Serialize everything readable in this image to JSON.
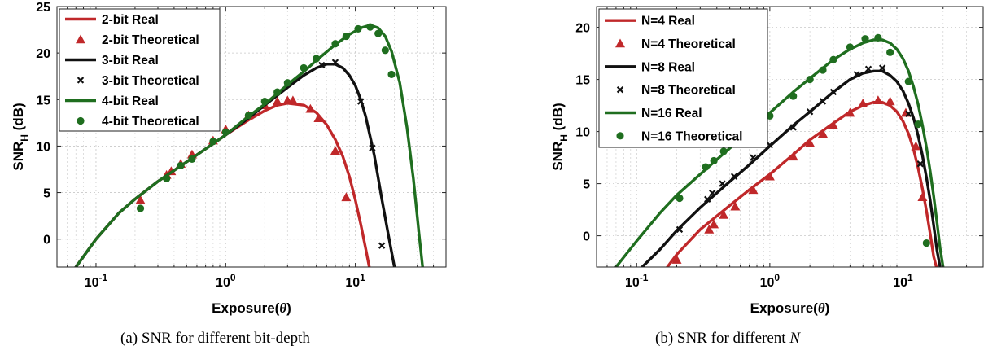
{
  "captions": {
    "a": "(a) SNR for different bit-depth",
    "b_prefix": "(b) SNR for different ",
    "b_math": "N"
  },
  "chart_data": [
    {
      "id": "a",
      "type": "line",
      "xscale": "log",
      "xlim": [
        0.05,
        50
      ],
      "ylim": [
        -3,
        25
      ],
      "yticks": [
        0,
        5,
        10,
        15,
        20,
        25
      ],
      "ytick_labels": [
        "0",
        "5",
        "10",
        "15",
        "20",
        "25"
      ],
      "xticks": [
        0.1,
        1,
        10
      ],
      "xtick_labels": [
        {
          "base": "10",
          "exp": "-1"
        },
        {
          "base": "10",
          "exp": "0"
        },
        {
          "base": "10",
          "exp": "1"
        }
      ],
      "xlabel": {
        "pre": "Exposure(",
        "sym": "θ",
        "post": ")"
      },
      "ylabel": {
        "main": "SNR",
        "sub": "H",
        "unit": " (dB)"
      },
      "grid": true,
      "legend_position": "top-left",
      "series": [
        {
          "name": "2-bit Real",
          "kind": "line",
          "color": "#c0282a",
          "x": [
            0.07,
            0.1,
            0.15,
            0.2,
            0.3,
            0.5,
            0.7,
            1,
            1.5,
            2,
            2.5,
            3,
            4,
            5,
            6,
            7,
            8,
            9,
            10,
            11,
            12,
            12.8
          ],
          "y": [
            -3,
            0,
            2.8,
            4.3,
            6.2,
            8.3,
            9.7,
            11.2,
            12.8,
            13.8,
            14.4,
            14.6,
            14.4,
            13.6,
            12.3,
            10.7,
            8.9,
            6.7,
            4.2,
            1.6,
            -1.0,
            -3
          ]
        },
        {
          "name": "2-bit Theoretical",
          "kind": "triangle",
          "color": "#c0282a",
          "x": [
            0.22,
            0.35,
            0.38,
            0.45,
            0.55,
            0.8,
            1.0,
            1.5,
            2.0,
            2.5,
            3.0,
            3.3,
            4.5,
            5.2,
            7.0,
            8.5
          ],
          "y": [
            4.2,
            6.9,
            7.3,
            8.1,
            9.1,
            10.6,
            11.8,
            13.3,
            14.4,
            14.8,
            14.9,
            14.9,
            14.0,
            13.0,
            9.5,
            4.5
          ]
        },
        {
          "name": "3-bit Real",
          "kind": "line",
          "color": "#111111",
          "x": [
            0.07,
            0.1,
            0.15,
            0.2,
            0.3,
            0.5,
            0.7,
            1,
            1.5,
            2,
            3,
            4,
            5,
            6,
            7,
            8,
            9,
            10,
            11,
            12,
            14,
            16,
            18,
            20
          ],
          "y": [
            -3,
            0,
            2.8,
            4.3,
            6.2,
            8.3,
            9.7,
            11.2,
            13.0,
            14.4,
            16.3,
            17.6,
            18.4,
            18.8,
            18.8,
            18.4,
            17.6,
            16.5,
            15.0,
            13.2,
            9.0,
            4.3,
            0.4,
            -3
          ]
        },
        {
          "name": "3-bit Theoretical",
          "kind": "x",
          "color": "#111111",
          "x": [
            5.5,
            7.0,
            11.0,
            13.5,
            16.0
          ],
          "y": [
            18.7,
            19.0,
            14.8,
            9.8,
            -0.7
          ]
        },
        {
          "name": "4-bit Real",
          "kind": "line",
          "color": "#1f6e1f",
          "x": [
            0.07,
            0.1,
            0.15,
            0.2,
            0.3,
            0.5,
            0.7,
            1,
            1.5,
            2,
            3,
            4,
            5,
            7,
            9,
            11,
            13,
            15,
            17,
            19,
            22,
            25,
            28,
            31,
            33
          ],
          "y": [
            -3,
            0,
            2.8,
            4.3,
            6.2,
            8.3,
            9.7,
            11.2,
            13.2,
            14.5,
            16.6,
            18.0,
            19.2,
            20.9,
            22.0,
            22.7,
            23.0,
            22.7,
            21.8,
            20.2,
            16.8,
            12.0,
            6.5,
            0.5,
            -3
          ]
        },
        {
          "name": "4-bit Theoretical",
          "kind": "circle",
          "color": "#1f6e1f",
          "x": [
            0.22,
            0.35,
            0.45,
            0.55,
            0.8,
            1.0,
            1.5,
            2.0,
            2.5,
            3.0,
            4.0,
            5.0,
            7.0,
            8.5,
            10.5,
            13.0,
            15.0,
            17.0,
            19.0
          ],
          "y": [
            3.3,
            6.5,
            7.9,
            8.6,
            10.5,
            11.5,
            13.3,
            14.8,
            15.8,
            16.8,
            18.4,
            19.4,
            21.0,
            21.8,
            22.6,
            22.8,
            22.1,
            20.3,
            17.7
          ]
        }
      ]
    },
    {
      "id": "b",
      "type": "line",
      "xscale": "log",
      "xlim": [
        0.05,
        40
      ],
      "ylim": [
        -3,
        22
      ],
      "yticks": [
        0,
        5,
        10,
        15,
        20
      ],
      "ytick_labels": [
        "0",
        "5",
        "10",
        "15",
        "20"
      ],
      "xticks": [
        0.1,
        1,
        10
      ],
      "xtick_labels": [
        {
          "base": "10",
          "exp": "-1"
        },
        {
          "base": "10",
          "exp": "0"
        },
        {
          "base": "10",
          "exp": "1"
        }
      ],
      "xlabel": {
        "pre": "Exposure(",
        "sym": "θ",
        "post": ")"
      },
      "ylabel": {
        "main": "SNR",
        "sub": "H",
        "unit": " (dB)"
      },
      "grid": true,
      "legend_position": "top-left",
      "series": [
        {
          "name": "N=4 Real",
          "kind": "line",
          "color": "#c0282a",
          "x": [
            0.17,
            0.2,
            0.3,
            0.5,
            0.7,
            1,
            1.5,
            2,
            3,
            4,
            5,
            6,
            7,
            8,
            9,
            10,
            11,
            12,
            13,
            14,
            15,
            16,
            17,
            17.8
          ],
          "y": [
            -3,
            -1.8,
            0.6,
            2.9,
            4.4,
            5.9,
            7.8,
            9.2,
            10.8,
            11.9,
            12.5,
            12.8,
            12.8,
            12.5,
            11.9,
            11.0,
            9.8,
            8.3,
            6.5,
            4.5,
            2.4,
            0.2,
            -2.0,
            -3
          ]
        },
        {
          "name": "N=4 Theoretical",
          "kind": "triangle",
          "color": "#c0282a",
          "x": [
            0.2,
            0.35,
            0.38,
            0.45,
            0.55,
            0.75,
            1.0,
            1.5,
            2.0,
            2.5,
            3.0,
            4.0,
            5.0,
            6.5,
            8.0,
            10.5,
            12.5,
            14.0
          ],
          "y": [
            -2.3,
            0.6,
            1.1,
            2.0,
            2.8,
            4.4,
            5.7,
            7.6,
            8.9,
            9.8,
            10.6,
            11.8,
            12.7,
            13.0,
            12.9,
            11.8,
            8.6,
            3.7
          ]
        },
        {
          "name": "N=8 Real",
          "kind": "line",
          "color": "#111111",
          "x": [
            0.11,
            0.15,
            0.2,
            0.3,
            0.5,
            0.7,
            1,
            1.5,
            2,
            3,
            4,
            5,
            6,
            7,
            8,
            9,
            10,
            11,
            12,
            13,
            14,
            15,
            16,
            17,
            18,
            19
          ],
          "y": [
            -3,
            -1.3,
            0.5,
            2.7,
            5.2,
            6.8,
            8.6,
            10.6,
            11.9,
            13.8,
            15.0,
            15.6,
            15.8,
            15.8,
            15.4,
            14.8,
            13.9,
            12.7,
            11.3,
            9.6,
            7.7,
            5.6,
            3.4,
            1.0,
            -1.4,
            -3
          ]
        },
        {
          "name": "N=8 Theoretical",
          "kind": "x",
          "color": "#111111",
          "x": [
            0.21,
            0.34,
            0.37,
            0.44,
            0.54,
            0.75,
            1.0,
            1.5,
            2.0,
            2.5,
            3.0,
            4.5,
            5.5,
            7.0,
            11.0,
            13.5
          ],
          "y": [
            0.6,
            3.5,
            4.1,
            5.0,
            5.7,
            7.5,
            8.7,
            10.4,
            11.9,
            12.9,
            13.8,
            15.5,
            16.0,
            16.1,
            11.7,
            6.9
          ]
        },
        {
          "name": "N=16 Real",
          "kind": "line",
          "color": "#1f6e1f",
          "x": [
            0.07,
            0.1,
            0.15,
            0.2,
            0.3,
            0.5,
            0.7,
            1,
            1.5,
            2,
            3,
            4,
            5,
            6,
            7,
            8,
            9,
            10,
            11,
            12,
            13,
            14,
            15,
            16,
            17,
            18,
            19,
            20
          ],
          "y": [
            -3,
            -0.5,
            2.2,
            3.9,
            5.9,
            8.4,
            10.0,
            11.8,
            13.8,
            15.1,
            16.9,
            17.9,
            18.5,
            18.8,
            18.8,
            18.5,
            17.9,
            17.0,
            15.8,
            14.3,
            12.6,
            10.6,
            8.5,
            6.2,
            3.8,
            1.3,
            -1.2,
            -3
          ]
        },
        {
          "name": "N=16 Theoretical",
          "kind": "circle",
          "color": "#1f6e1f",
          "x": [
            0.21,
            0.33,
            0.38,
            0.45,
            0.55,
            0.75,
            1.0,
            1.5,
            2.0,
            2.5,
            3.0,
            4.0,
            5.2,
            6.5,
            8.0,
            11.0,
            13.0,
            15.0
          ],
          "y": [
            3.6,
            6.6,
            7.2,
            8.1,
            8.9,
            10.3,
            11.5,
            13.4,
            15.0,
            15.9,
            16.9,
            18.1,
            18.9,
            19.0,
            17.6,
            14.8,
            10.7,
            -0.7
          ]
        }
      ]
    }
  ]
}
